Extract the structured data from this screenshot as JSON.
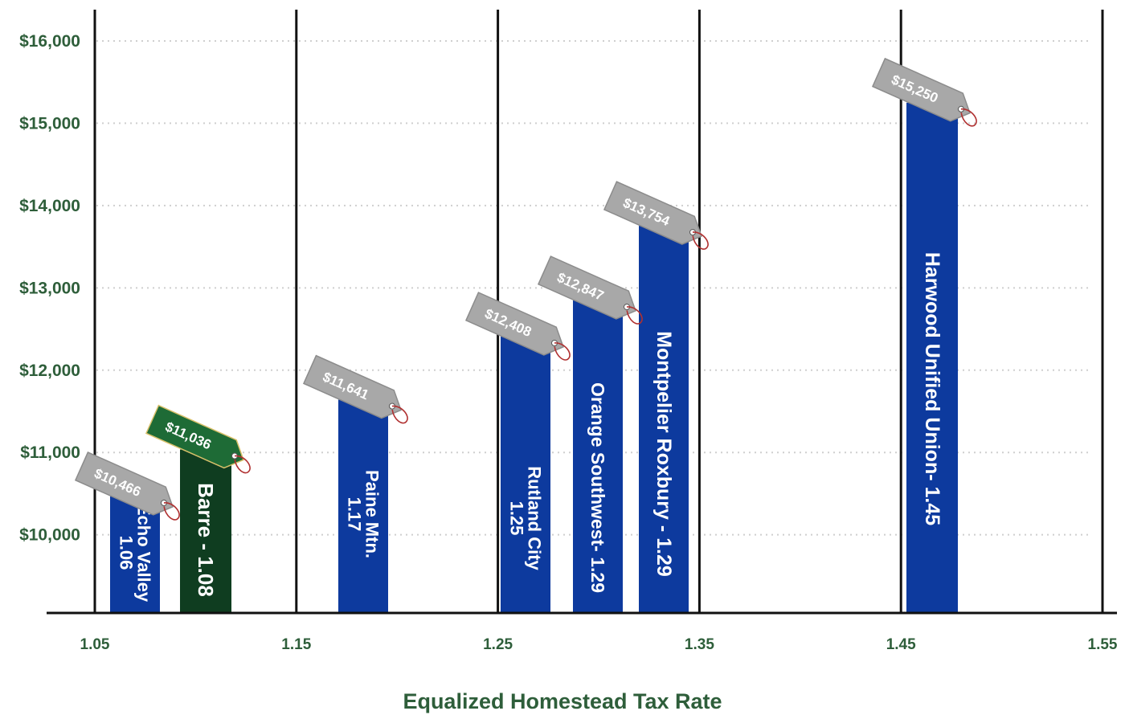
{
  "chart_data": {
    "type": "bar",
    "title": "",
    "xlabel": "Equalized Homestead Tax Rate",
    "ylabel": "",
    "xlim": [
      1.05,
      1.55
    ],
    "ylim": [
      9050,
      16400
    ],
    "x_ticks": [
      "1.05",
      "1.15",
      "1.25",
      "1.35",
      "1.45",
      "1.55"
    ],
    "y_ticks": [
      "$10,000",
      "$11,000",
      "$12,000",
      "$13,000",
      "$14,000",
      "$15,000",
      "$16,000"
    ],
    "y_tick_values": [
      10000,
      11000,
      12000,
      13000,
      14000,
      15000,
      16000
    ],
    "grid": {
      "horizontal": "dotted",
      "vertical": "solid at x ticks"
    },
    "colors": {
      "bar": "#0d3a9e",
      "highlight_bar": "#0f3d20",
      "tag": "#a8a8a8",
      "highlight_tag": "#1e6b36",
      "axis_text": "#2e5e3a",
      "string": "#b03030"
    },
    "points": [
      {
        "name": "Echo Valley",
        "label_lines": [
          "Echo Valley",
          "1.06"
        ],
        "rate": 1.06,
        "value": 10466,
        "tag": "$10,466",
        "highlight": false
      },
      {
        "name": "Barre",
        "label_lines": [
          "Barre - 1.08"
        ],
        "rate": 1.08,
        "value": 11036,
        "tag": "$11,036",
        "highlight": true
      },
      {
        "name": "Paine Mtn.",
        "label_lines": [
          "Paine Mtn.",
          "1.17"
        ],
        "rate": 1.17,
        "value": 11641,
        "tag": "$11,641",
        "highlight": false
      },
      {
        "name": "Rutland City",
        "label_lines": [
          "Rutland City",
          "1.25"
        ],
        "rate": 1.25,
        "value": 12408,
        "tag": "$12,408",
        "highlight": false
      },
      {
        "name": "Orange Southwest",
        "label_lines": [
          "Orange Southwest- 1.29"
        ],
        "rate": 1.29,
        "value": 12847,
        "tag": "$12,847",
        "highlight": false
      },
      {
        "name": "Montpelier Roxbury",
        "label_lines": [
          "Montpelier Roxbury  -  1.29"
        ],
        "rate": 1.29,
        "value": 13754,
        "tag": "$13,754",
        "highlight": false
      },
      {
        "name": "Harwood Unified Union",
        "label_lines": [
          "Harwood Unified Union- 1.45"
        ],
        "rate": 1.45,
        "value": 15250,
        "tag": "$15,250",
        "highlight": false
      }
    ]
  }
}
